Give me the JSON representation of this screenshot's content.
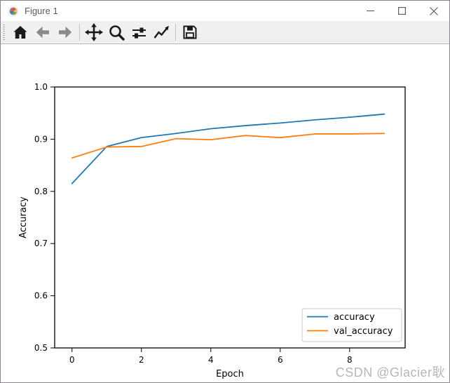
{
  "window": {
    "title": "Figure 1",
    "icon": "matplotlib-logo-icon",
    "controls": [
      "minimize",
      "maximize",
      "close"
    ]
  },
  "toolbar": {
    "items": [
      "home-icon",
      "back-icon",
      "forward-icon",
      "pan-icon",
      "zoom-icon",
      "subplots-icon",
      "customize-icon",
      "save-icon"
    ]
  },
  "chart_data": {
    "type": "line",
    "title": "",
    "xlabel": "Epoch",
    "ylabel": "Accuracy",
    "x": [
      0,
      1,
      2,
      3,
      4,
      5,
      6,
      7,
      8,
      9
    ],
    "series": [
      {
        "name": "accuracy",
        "color": "#1f77b4",
        "values": [
          0.815,
          0.886,
          0.903,
          0.911,
          0.92,
          0.926,
          0.931,
          0.937,
          0.942,
          0.948
        ]
      },
      {
        "name": "val_accuracy",
        "color": "#ff7f0e",
        "values": [
          0.864,
          0.885,
          0.886,
          0.901,
          0.899,
          0.907,
          0.903,
          0.91,
          0.91,
          0.911
        ]
      }
    ],
    "xlim": [
      -0.5,
      9.6
    ],
    "ylim": [
      0.5,
      1.0
    ],
    "x_ticks": [
      0,
      2,
      4,
      6,
      8
    ],
    "y_ticks": [
      0.5,
      0.6,
      0.7,
      0.8,
      0.9,
      1.0
    ],
    "grid": false,
    "legend_position": "lower right"
  },
  "watermark": {
    "text": "CSDN @Glacier耿"
  }
}
